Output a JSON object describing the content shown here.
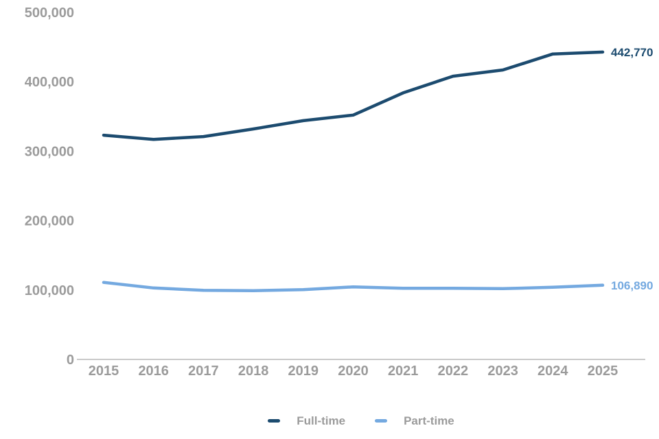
{
  "chart_data": {
    "type": "line",
    "title": "",
    "xlabel": "",
    "ylabel": "",
    "categories": [
      "2015",
      "2016",
      "2017",
      "2018",
      "2019",
      "2020",
      "2021",
      "2022",
      "2023",
      "2024",
      "2025"
    ],
    "series": [
      {
        "name": "Full-time",
        "color": "#1c4b6f",
        "values": [
          323000,
          317000,
          321000,
          332000,
          344000,
          352000,
          384000,
          408000,
          417000,
          440000,
          442770
        ],
        "end_label": "442,770"
      },
      {
        "name": "Part-time",
        "color": "#74a9e0",
        "values": [
          111000,
          103000,
          99500,
          99000,
          100500,
          104500,
          102500,
          102500,
          102000,
          104000,
          106890
        ],
        "end_label": "106,890"
      }
    ],
    "ylim": [
      0,
      500000
    ],
    "y_ticks": [
      0,
      100000,
      200000,
      300000,
      400000,
      500000
    ],
    "y_tick_labels": [
      "0",
      "100,000",
      "200,000",
      "300,000",
      "400,000",
      "500,000"
    ],
    "grid": "off",
    "legend_position": "bottom"
  },
  "colors": {
    "axis_line": "#b7b7b7",
    "axis_label": "#9b9b9b",
    "background": "#ffffff"
  }
}
